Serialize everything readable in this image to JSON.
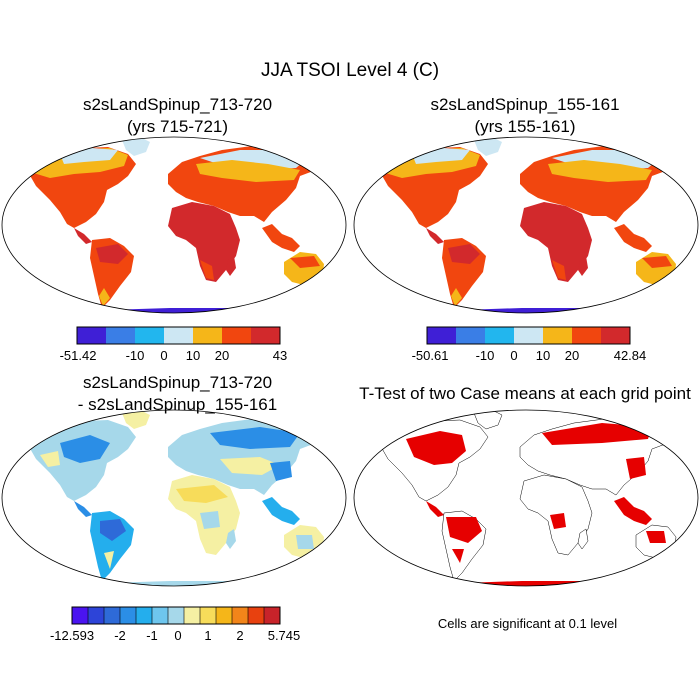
{
  "figure_title": "JJA TSOI Level 4 (C)",
  "panels": [
    {
      "id": "case1",
      "title_line1": "s2sLandSpinup_713-720",
      "title_line2": "(yrs 715-721)"
    },
    {
      "id": "case2",
      "title_line1": "s2sLandSpinup_155-161",
      "title_line2": "(yrs 155-161)"
    },
    {
      "id": "diff",
      "title_line1": "s2sLandSpinup_713-720",
      "title_line2": "- s2sLandSpinup_155-161"
    },
    {
      "id": "ttest",
      "title_line1": "T-Test of two Case means at each grid point",
      "title_line2": ""
    }
  ],
  "note": "Cells are significant at 0.1 level",
  "colors": {
    "c1": "#3f1fd6",
    "c2": "#3a7ee6",
    "c3": "#22b6ee",
    "c4": "#cde7f3",
    "c5": "#f5b619",
    "c6": "#f1460f",
    "c7": "#d2292c",
    "d1": "#4a14f0",
    "d2": "#2d44d8",
    "d3": "#2e6ad8",
    "d4": "#2b8ee6",
    "d5": "#24aeed",
    "d6": "#a6d8ea",
    "d7": "#f5f0a3",
    "d8": "#f7dc5a",
    "d9": "#f5b619",
    "d10": "#f2851a",
    "d11": "#e8410f",
    "d12": "#c8232a",
    "sig": "#e60000"
  },
  "chart_data": [
    {
      "type": "heatmap",
      "panel": "case1",
      "title": "s2sLandSpinup_713-720 (yrs 715-721)",
      "colorbar_labels": [
        "-51.42",
        "-10",
        "0",
        "10",
        "20",
        "43"
      ],
      "min": -51.42,
      "max": 43
    },
    {
      "type": "heatmap",
      "panel": "case2",
      "title": "s2sLandSpinup_155-161 (yrs 155-161)",
      "colorbar_labels": [
        "-50.61",
        "-10",
        "0",
        "10",
        "20",
        "42.84"
      ],
      "min": -50.61,
      "max": 42.84
    },
    {
      "type": "heatmap",
      "panel": "diff",
      "title": "s2sLandSpinup_713-720 - s2sLandSpinup_155-161",
      "colorbar_labels": [
        "-12.593",
        "-2",
        "-1",
        "0",
        "1",
        "2",
        "5.745"
      ],
      "min": -12.593,
      "max": 5.745
    },
    {
      "type": "heatmap",
      "panel": "ttest",
      "title": "T-Test of two Case means at each grid point",
      "significance_level": 0.1
    }
  ]
}
